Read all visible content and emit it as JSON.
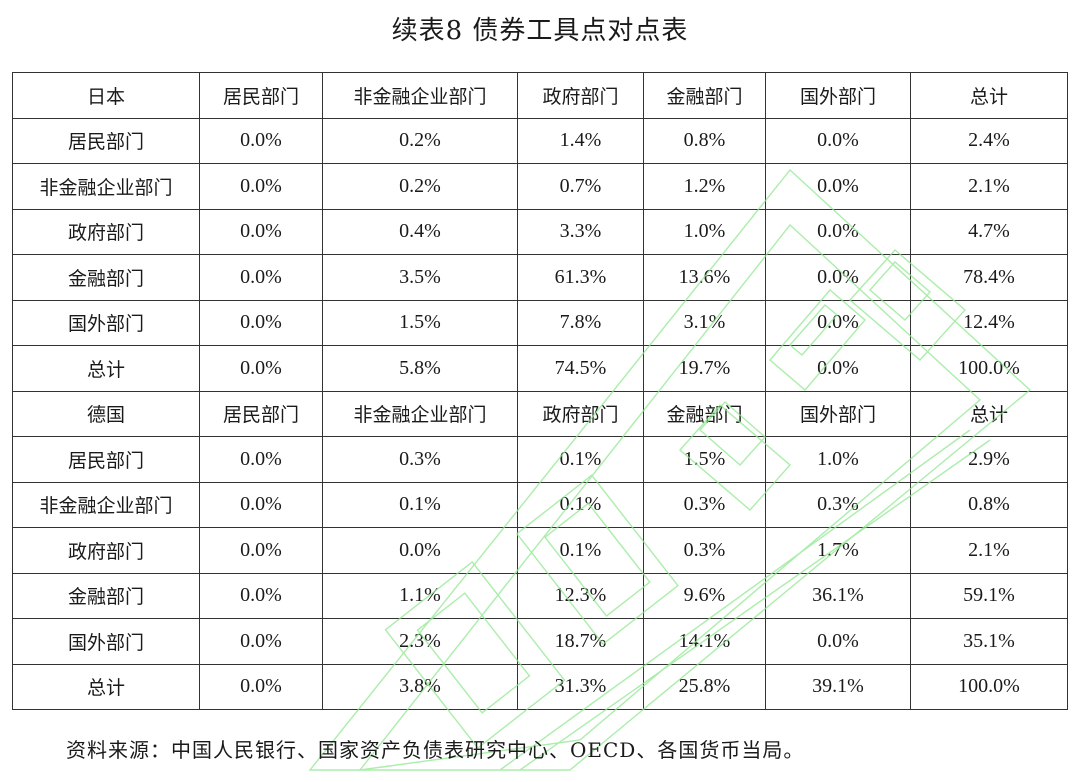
{
  "title": "续表8  债券工具点对点表",
  "columns": [
    "居民部门",
    "非金融企业部门",
    "政府部门",
    "金融部门",
    "国外部门",
    "总计"
  ],
  "sections": [
    {
      "country": "日本",
      "rows": [
        {
          "label": "居民部门",
          "values": [
            "0.0%",
            "0.2%",
            "1.4%",
            "0.8%",
            "0.0%",
            "2.4%"
          ]
        },
        {
          "label": "非金融企业部门",
          "values": [
            "0.0%",
            "0.2%",
            "0.7%",
            "1.2%",
            "0.0%",
            "2.1%"
          ]
        },
        {
          "label": "政府部门",
          "values": [
            "0.0%",
            "0.4%",
            "3.3%",
            "1.0%",
            "0.0%",
            "4.7%"
          ]
        },
        {
          "label": "金融部门",
          "values": [
            "0.0%",
            "3.5%",
            "61.3%",
            "13.6%",
            "0.0%",
            "78.4%"
          ]
        },
        {
          "label": "国外部门",
          "values": [
            "0.0%",
            "1.5%",
            "7.8%",
            "3.1%",
            "0.0%",
            "12.4%"
          ]
        },
        {
          "label": "总计",
          "values": [
            "0.0%",
            "5.8%",
            "74.5%",
            "19.7%",
            "0.0%",
            "100.0%"
          ]
        }
      ]
    },
    {
      "country": "德国",
      "rows": [
        {
          "label": "居民部门",
          "values": [
            "0.0%",
            "0.3%",
            "0.1%",
            "1.5%",
            "1.0%",
            "2.9%"
          ]
        },
        {
          "label": "非金融企业部门",
          "values": [
            "0.0%",
            "0.1%",
            "0.1%",
            "0.3%",
            "0.3%",
            "0.8%"
          ]
        },
        {
          "label": "政府部门",
          "values": [
            "0.0%",
            "0.0%",
            "0.1%",
            "0.3%",
            "1.7%",
            "2.1%"
          ]
        },
        {
          "label": "金融部门",
          "values": [
            "0.0%",
            "1.1%",
            "12.3%",
            "9.6%",
            "36.1%",
            "59.1%"
          ]
        },
        {
          "label": "国外部门",
          "values": [
            "0.0%",
            "2.3%",
            "18.7%",
            "14.1%",
            "0.0%",
            "35.1%"
          ]
        },
        {
          "label": "总计",
          "values": [
            "0.0%",
            "3.8%",
            "31.3%",
            "25.8%",
            "39.1%",
            "100.0%"
          ]
        }
      ]
    }
  ],
  "source": "资料来源：中国人民银行、国家资产负债表研究中心、OECD、各国货币当局。",
  "colors": {
    "border": "#333333",
    "watermark": "#7fe07f"
  }
}
